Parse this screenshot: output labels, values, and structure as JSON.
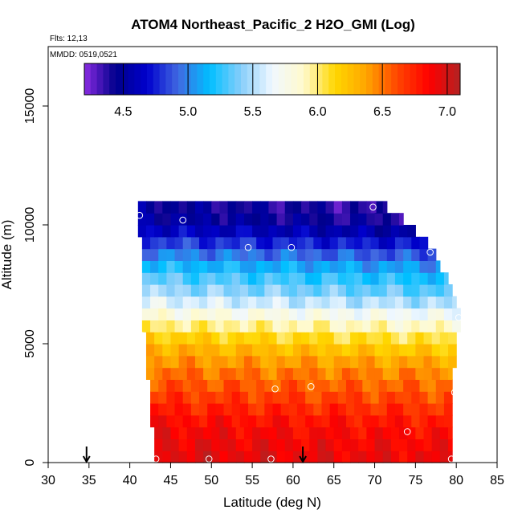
{
  "chart_data": {
    "type": "heatmap",
    "title": "ATOM4 Northeast_Pacific_2 H2O_GMI (Log)",
    "flights_text": "Flts: 12,13",
    "dates_text": "MMDD: 0519,0521",
    "xlabel": "Latitude (deg N)",
    "ylabel": "Altitude (m)",
    "xlim": [
      30,
      85
    ],
    "ylim": [
      0,
      17500
    ],
    "x_ticks": [
      30,
      35,
      40,
      45,
      50,
      55,
      60,
      65,
      70,
      75,
      80,
      85
    ],
    "x_tick_labels": [
      "30",
      "35",
      "40",
      "45",
      "50",
      "55",
      "60",
      "65",
      "70",
      "75",
      "80",
      "85"
    ],
    "y_ticks": [
      0,
      5000,
      10000,
      15000
    ],
    "y_tick_labels": [
      "0",
      "5000",
      "10000",
      "15000"
    ],
    "colorbar": {
      "range": [
        4.2,
        7.1
      ],
      "ticks": [
        4.5,
        5.0,
        5.5,
        6.0,
        6.5,
        7.0
      ],
      "tick_labels": [
        "4.5",
        "5.0",
        "5.5",
        "6.0",
        "6.5",
        "7.0"
      ],
      "colors": [
        "#8a2be2",
        "#00008b",
        "#0000cd",
        "#4169e1",
        "#00bfff",
        "#87cefa",
        "#f0f8ff",
        "#fffacd",
        "#ffd700",
        "#ffa500",
        "#ff4500",
        "#ff0000",
        "#b22222"
      ]
    },
    "grid_step": {
      "lat": 1.0,
      "alt": 500
    },
    "data_extent": {
      "lat_min_by_altitude": [
        {
          "alt": 0,
          "lat": 43.0
        },
        {
          "alt": 2000,
          "lat": 42.5
        },
        {
          "alt": 4000,
          "lat": 42.0
        },
        {
          "alt": 6000,
          "lat": 41.5
        },
        {
          "alt": 8000,
          "lat": 41.5
        },
        {
          "alt": 10000,
          "lat": 41.0
        },
        {
          "alt": 10500,
          "lat": 41.0
        }
      ],
      "lat_max_by_altitude": [
        {
          "alt": 0,
          "lat": 79.5
        },
        {
          "alt": 3000,
          "lat": 79.5
        },
        {
          "alt": 5000,
          "lat": 80.0
        },
        {
          "alt": 6000,
          "lat": 80.5
        },
        {
          "alt": 7000,
          "lat": 79.5
        },
        {
          "alt": 8500,
          "lat": 77.5
        },
        {
          "alt": 9500,
          "lat": 75.0
        },
        {
          "alt": 10500,
          "lat": 71.5
        }
      ]
    },
    "value_profile": [
      {
        "alt": 0,
        "value": 6.95
      },
      {
        "alt": 1500,
        "value": 6.85
      },
      {
        "alt": 3000,
        "value": 6.6
      },
      {
        "alt": 4000,
        "value": 6.45
      },
      {
        "alt": 5000,
        "value": 6.2
      },
      {
        "alt": 6000,
        "value": 5.85
      },
      {
        "alt": 7000,
        "value": 5.45
      },
      {
        "alt": 8000,
        "value": 5.2
      },
      {
        "alt": 9000,
        "value": 4.85
      },
      {
        "alt": 10000,
        "value": 4.5
      },
      {
        "alt": 10500,
        "value": 4.4
      }
    ],
    "sample_points": [
      {
        "lat": 41.2,
        "alt": 10400
      },
      {
        "lat": 46.5,
        "alt": 10200
      },
      {
        "lat": 69.8,
        "alt": 10750
      },
      {
        "lat": 54.5,
        "alt": 9050
      },
      {
        "lat": 59.8,
        "alt": 9050
      },
      {
        "lat": 76.8,
        "alt": 8850
      },
      {
        "lat": 80.3,
        "alt": 6100
      },
      {
        "lat": 41.5,
        "alt": 5350
      },
      {
        "lat": 57.8,
        "alt": 3100
      },
      {
        "lat": 62.2,
        "alt": 3200
      },
      {
        "lat": 79.8,
        "alt": 2950
      },
      {
        "lat": 74.0,
        "alt": 1300
      },
      {
        "lat": 43.2,
        "alt": 150
      },
      {
        "lat": 49.7,
        "alt": 150
      },
      {
        "lat": 57.3,
        "alt": 150
      },
      {
        "lat": 79.4,
        "alt": 150
      }
    ],
    "arrows": [
      {
        "lat": 34.7,
        "alt": 0
      },
      {
        "lat": 61.2,
        "alt": 0
      }
    ]
  }
}
